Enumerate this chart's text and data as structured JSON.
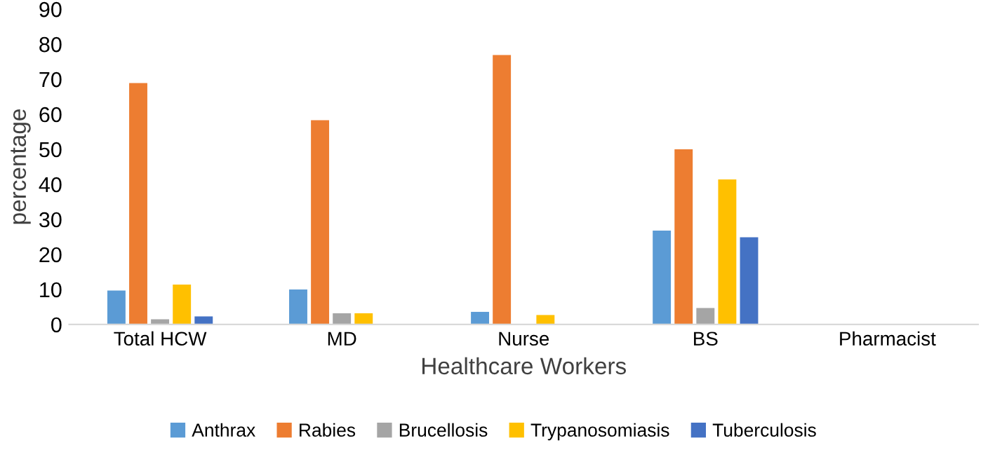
{
  "chart_data": {
    "type": "bar",
    "xlabel": "Healthcare Workers",
    "ylabel": "percentage",
    "categories": [
      "Total HCW",
      "MD",
      "Nurse",
      "BS",
      "Pharmacist"
    ],
    "series": [
      {
        "name": "Anthrax",
        "color": "#5b9bd5",
        "values": [
          9.7,
          10,
          3.6,
          26.8,
          0
        ]
      },
      {
        "name": "Rabies",
        "color": "#ed7d31",
        "values": [
          68.9,
          58.3,
          76.9,
          50,
          0
        ]
      },
      {
        "name": "Brucellosis",
        "color": "#a5a5a5",
        "values": [
          1.5,
          3.2,
          0,
          4.7,
          0
        ]
      },
      {
        "name": "Trypanosomiasis",
        "color": "#ffc000",
        "values": [
          11.4,
          3.2,
          2.7,
          41.4,
          0
        ]
      },
      {
        "name": "Tuberculosis",
        "color": "#4472c4",
        "values": [
          2.3,
          0,
          0,
          24.9,
          0
        ]
      }
    ],
    "ylim": [
      0,
      90
    ],
    "yticks": [
      0,
      10,
      20,
      30,
      40,
      50,
      60,
      70,
      80,
      90
    ],
    "grid": false,
    "legend": "bottom"
  }
}
